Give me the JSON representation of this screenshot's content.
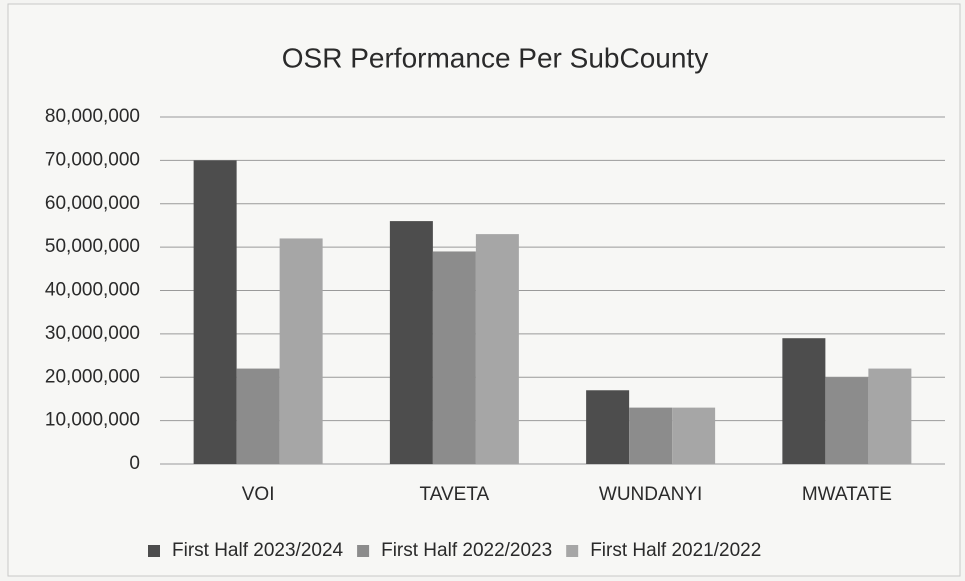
{
  "chart_data": {
    "type": "bar",
    "title": "OSR Performance Per SubCounty",
    "categories": [
      "VOI",
      "TAVETA",
      "WUNDANYI",
      "MWATATE"
    ],
    "series": [
      {
        "name": "First Half 2023/2024",
        "color": "#4d4d4d",
        "values": [
          70000000,
          56000000,
          17000000,
          29000000
        ]
      },
      {
        "name": "First Half 2022/2023",
        "color": "#8c8c8c",
        "values": [
          22000000,
          49000000,
          13000000,
          20000000
        ]
      },
      {
        "name": "First Half 2021/2022",
        "color": "#a6a6a6",
        "values": [
          52000000,
          53000000,
          13000000,
          22000000
        ]
      }
    ],
    "ylim": [
      0,
      80000000
    ],
    "yticks": [
      0,
      {
        "value": 10000000,
        "label": "10,000,000"
      },
      {
        "value": 20000000,
        "label": "20,000,000"
      },
      {
        "value": 30000000,
        "label": "30,000,000"
      },
      {
        "value": 40000000,
        "label": "40,000,000"
      },
      {
        "value": 50000000,
        "label": "50,000,000"
      },
      {
        "value": 60000000,
        "label": "60,000,000"
      },
      {
        "value": 70000000,
        "label": "70,000,000"
      },
      {
        "value": 80000000,
        "label": "80,000,000"
      }
    ],
    "grid": true,
    "legend": "bottom"
  }
}
